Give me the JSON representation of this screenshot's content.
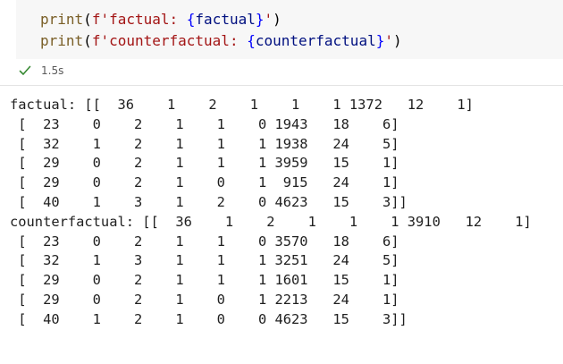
{
  "code": {
    "line1": {
      "fn": "print",
      "open": "(",
      "prefix": "f'factual: ",
      "brace_open": "{",
      "var": "factual",
      "brace_close": "}",
      "suffix": "'",
      "close": ")"
    },
    "line2": {
      "fn": "print",
      "open": "(",
      "prefix": "f'counterfactual: ",
      "brace_open": "{",
      "var": "counterfactual",
      "brace_close": "}",
      "suffix": "'",
      "close": ")"
    }
  },
  "execution": {
    "status_icon": "check-icon",
    "status_color": "#388a34",
    "duration": "1.5s"
  },
  "output": {
    "lines": [
      "factual: [[  36    1    2    1    1    1 1372   12    1]",
      " [  23    0    2    1    1    0 1943   18    6]",
      " [  32    1    2    1    1    1 1938   24    5]",
      " [  29    0    2    1    1    1 3959   15    1]",
      " [  29    0    2    1    0    1  915   24    1]",
      " [  40    1    3    1    2    0 4623   15    3]]",
      "counterfactual: [[  36    1    2    1    1    1 3910   12    1]",
      " [  23    0    2    1    1    0 3570   18    6]",
      " [  32    1    3    1    1    1 3251   24    5]",
      " [  29    0    2    1    1    1 1601   15    1]",
      " [  29    0    2    1    0    1 2213   24    1]",
      " [  40    1    2    1    0    0 4623   15    3]]"
    ]
  }
}
